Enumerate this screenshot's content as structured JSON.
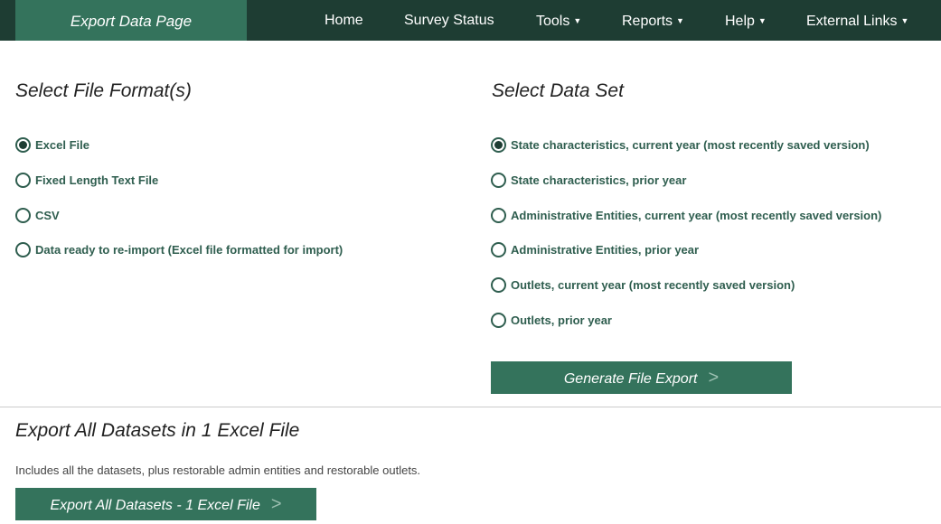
{
  "nav": {
    "brand": "Export Data Page",
    "items": [
      {
        "label": "Home",
        "dropdown": false
      },
      {
        "label": "Survey Status",
        "dropdown": false
      },
      {
        "label": "Tools",
        "dropdown": true
      },
      {
        "label": "Reports",
        "dropdown": true
      },
      {
        "label": "Help",
        "dropdown": true
      },
      {
        "label": "External Links",
        "dropdown": true
      }
    ]
  },
  "formats": {
    "title": "Select File Format(s)",
    "options": [
      {
        "label": "Excel File",
        "selected": true
      },
      {
        "label": "Fixed Length Text File",
        "selected": false
      },
      {
        "label": "CSV",
        "selected": false
      },
      {
        "label": "Data ready to re-import (Excel file formatted for import)",
        "selected": false
      }
    ]
  },
  "datasets": {
    "title": "Select Data Set",
    "options": [
      {
        "label": "State characteristics, current year (most recently saved version)",
        "selected": true
      },
      {
        "label": "State characteristics, prior year",
        "selected": false
      },
      {
        "label": "Administrative Entities, current year (most recently saved version)",
        "selected": false
      },
      {
        "label": "Administrative Entities, prior year",
        "selected": false
      },
      {
        "label": "Outlets, current year (most recently saved version)",
        "selected": false
      },
      {
        "label": "Outlets, prior year",
        "selected": false
      }
    ]
  },
  "generate_button": {
    "label": "Generate File Export",
    "arrow": ">"
  },
  "export_all": {
    "title": "Export All Datasets in 1 Excel File",
    "description": "Includes all the datasets, plus restorable admin entities and restorable outlets.",
    "button_label": "Export All Datasets - 1 Excel File",
    "arrow": ">"
  },
  "colors": {
    "nav": "#1e3d33",
    "accent": "#34735c",
    "label": "#2f5e4f"
  }
}
